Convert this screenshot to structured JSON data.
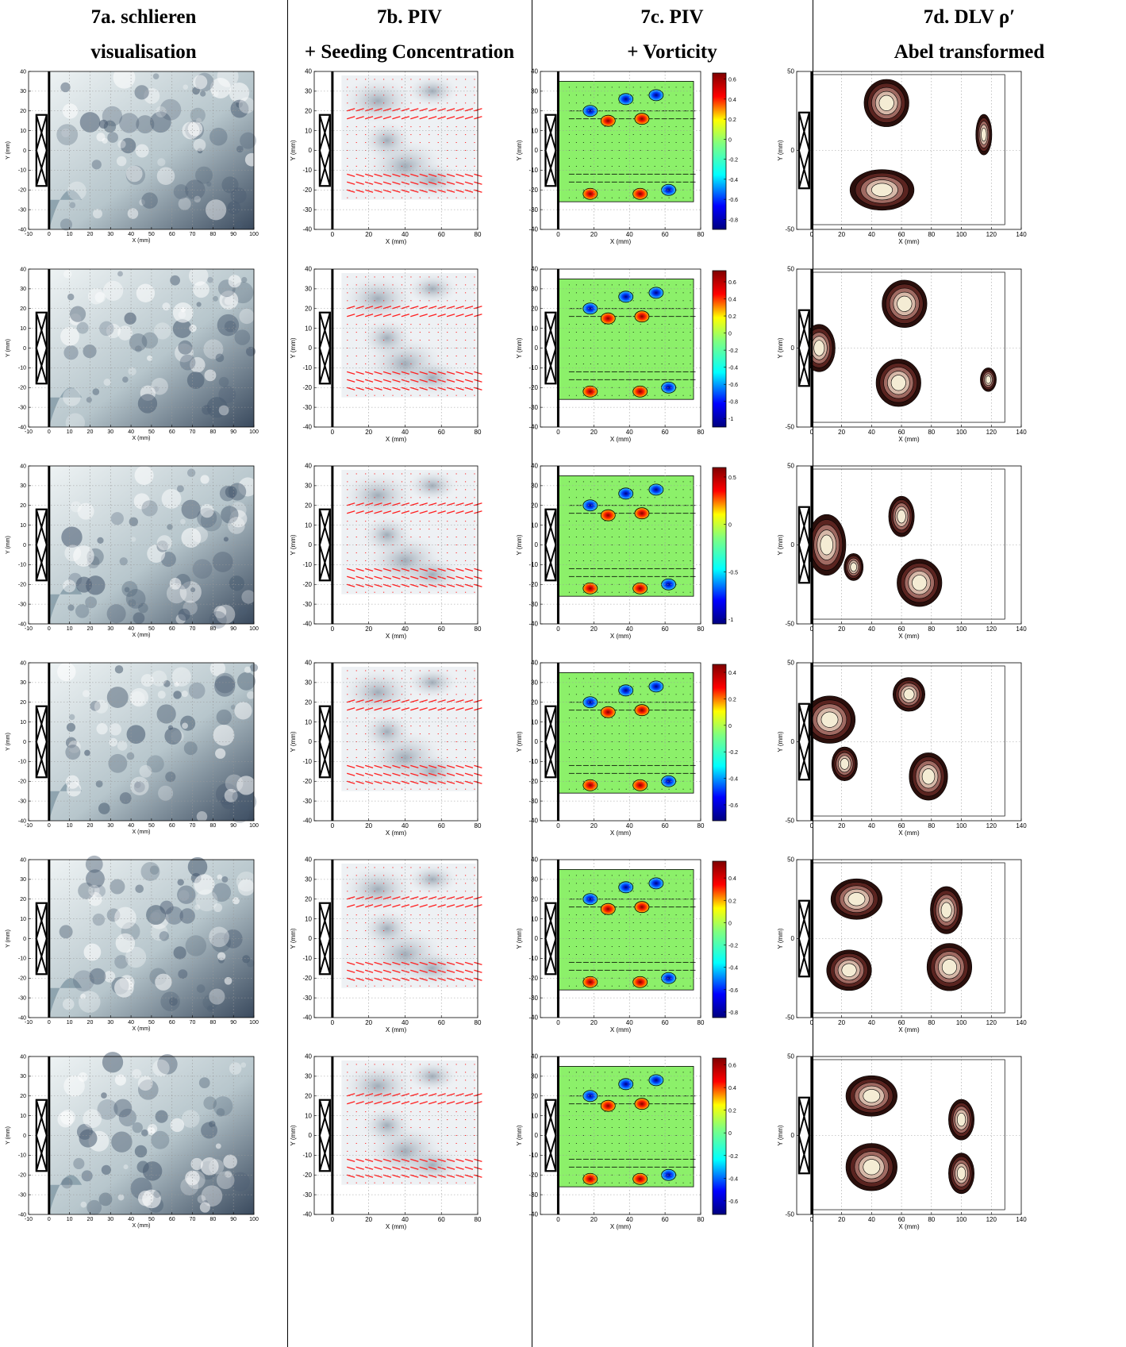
{
  "headers": [
    {
      "line1": "7a. schlieren",
      "line2": "visualisation"
    },
    {
      "line1": "7b. PIV",
      "line2": "+ Seeding Concentration"
    },
    {
      "line1": "7c. PIV",
      "line2": "+ Vorticity"
    },
    {
      "line1": "7d. DLV ρ′",
      "line2": "Abel transformed"
    }
  ],
  "colors": {
    "schlieren_light": "#eef3f4",
    "schlieren_dark": "#3a4a5e",
    "piv_arrow": "#ff2020",
    "vort_bg": "#8cf06a",
    "dlv_light": "#f3ecd2",
    "dlv_dark": "#2a0f0c"
  },
  "panels": {
    "a": {
      "xlabel": "X (mm)",
      "ylabel": "Y (mm)",
      "xlim": [
        -10,
        100
      ],
      "ylim": [
        -40,
        40
      ],
      "xticks": [
        -10,
        0,
        10,
        20,
        30,
        40,
        50,
        60,
        70,
        80,
        90,
        100
      ],
      "yticks": [
        -40,
        -30,
        -20,
        -10,
        0,
        10,
        20,
        30,
        40
      ]
    },
    "b": {
      "xlabel": "X (mm)",
      "ylabel": "Y (mm)",
      "xlim": [
        -10,
        80
      ],
      "ylim": [
        -40,
        40
      ],
      "xticks": [
        0,
        20,
        40,
        60,
        80
      ],
      "yticks": [
        -40,
        -30,
        -20,
        -10,
        0,
        10,
        20,
        30,
        40
      ]
    },
    "c": {
      "xlabel": "X (mm)",
      "ylabel": "Y (mm)",
      "xlim": [
        -10,
        80
      ],
      "ylim": [
        -40,
        40
      ],
      "xticks": [
        0,
        20,
        40,
        60,
        80
      ],
      "yticks": [
        -40,
        -30,
        -20,
        -10,
        0,
        10,
        20,
        30,
        40
      ]
    },
    "d": {
      "xlabel": "X (mm)",
      "ylabel": "Y (mm)",
      "xlim": [
        -10,
        140
      ],
      "ylim": [
        -50,
        50
      ],
      "xticks": [
        0,
        20,
        40,
        60,
        80,
        100,
        120,
        140
      ],
      "yticks": [
        -50,
        0,
        50
      ]
    }
  },
  "colorbars": [
    {
      "ticks": [
        0.6,
        0.4,
        0.2,
        0,
        -0.2,
        -0.4,
        -0.6,
        -0.8
      ],
      "range": [
        -0.9,
        0.66
      ]
    },
    {
      "ticks": [
        0.6,
        0.4,
        0.2,
        0,
        -0.2,
        -0.4,
        -0.6,
        -0.8,
        -1
      ],
      "range": [
        -1.1,
        0.73
      ]
    },
    {
      "ticks": [
        0.5,
        0,
        -0.5,
        -1
      ],
      "range": [
        -1.05,
        0.6
      ]
    },
    {
      "ticks": [
        0.4,
        0.2,
        0,
        -0.2,
        -0.4,
        -0.6
      ],
      "range": [
        -0.72,
        0.46
      ]
    },
    {
      "ticks": [
        0.4,
        0.2,
        0,
        -0.2,
        -0.4,
        -0.6,
        -0.8
      ],
      "range": [
        -0.85,
        0.55
      ]
    },
    {
      "ticks": [
        0.6,
        0.4,
        0.2,
        0,
        -0.2,
        -0.4,
        -0.6
      ],
      "range": [
        -0.72,
        0.66
      ]
    }
  ]
}
